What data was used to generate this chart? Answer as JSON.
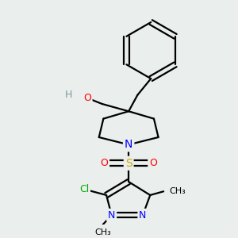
{
  "bg_color": "#eaeeed",
  "atom_colors": {
    "C": "#000000",
    "N": "#0000ff",
    "O": "#ff0000",
    "S": "#ccaa00",
    "Cl": "#00aa00",
    "H": "#7a9a9a"
  },
  "bond_color": "#000000",
  "bond_width": 1.6,
  "figsize": [
    3.0,
    3.0
  ],
  "dpi": 100
}
